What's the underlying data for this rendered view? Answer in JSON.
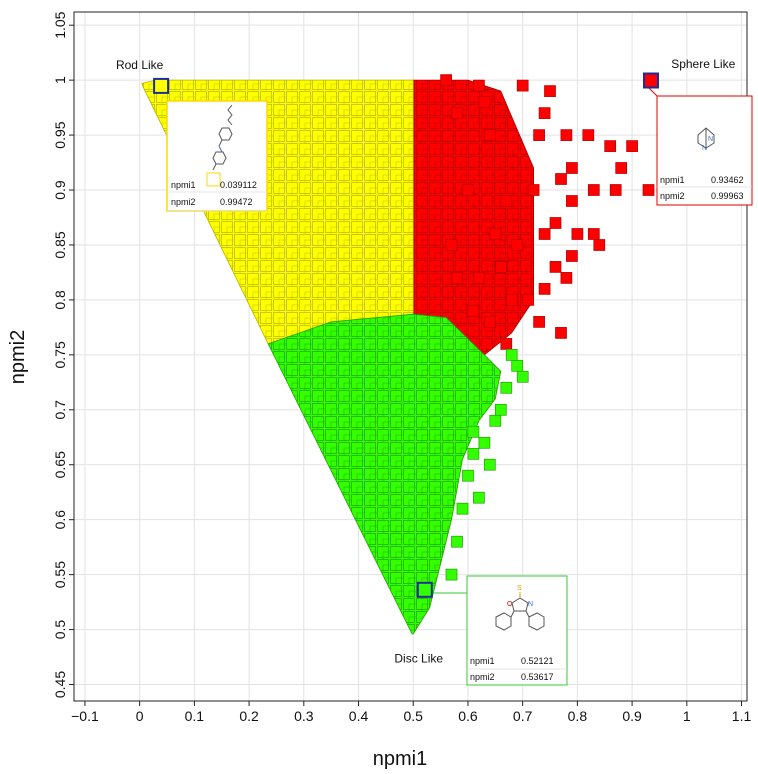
{
  "chart_data": {
    "type": "scatter",
    "xlabel": "npmi1",
    "ylabel": "npmi2",
    "xlim": [
      -0.12,
      1.11
    ],
    "ylim": [
      0.435,
      1.062
    ],
    "x_ticks": [
      -0.1,
      0,
      0.1,
      0.2,
      0.3,
      0.4,
      0.5,
      0.6,
      0.7,
      0.8,
      0.9,
      1,
      1.1
    ],
    "x_tick_labels": [
      "−0.1",
      "0",
      "0.1",
      "0.2",
      "0.3",
      "0.4",
      "0.5",
      "0.6",
      "0.7",
      "0.8",
      "0.9",
      "1",
      "1.1"
    ],
    "y_ticks": [
      0.45,
      0.5,
      0.55,
      0.6,
      0.65,
      0.7,
      0.75,
      0.8,
      0.85,
      0.9,
      0.95,
      1,
      1.05
    ],
    "y_tick_labels": [
      "0.45",
      "0.5",
      "0.55",
      "0.6",
      "0.65",
      "0.7",
      "0.75",
      "0.8",
      "0.85",
      "0.9",
      "0.95",
      "1",
      "1.05"
    ],
    "grid": true,
    "region_labels": [
      {
        "text": "Rod Like",
        "x": 0.0,
        "y": 1.01
      },
      {
        "text": "Sphere Like",
        "x": 1.03,
        "y": 1.011
      },
      {
        "text": "Disc Like",
        "x": 0.51,
        "y": 0.47
      }
    ],
    "series_colors": {
      "rod": "#ffff00",
      "disc": "#33ff00",
      "sphere": "#ff0000"
    },
    "density_regions": {
      "rod": [
        [
          0.004,
          0.997
        ],
        [
          0.03,
          1.0
        ],
        [
          0.5,
          1.0
        ],
        [
          0.5,
          0.787
        ],
        [
          0.35,
          0.78
        ],
        [
          0.235,
          0.76
        ],
        [
          0.007,
          0.993
        ]
      ],
      "disc": [
        [
          0.235,
          0.76
        ],
        [
          0.35,
          0.78
        ],
        [
          0.5,
          0.787
        ],
        [
          0.56,
          0.784
        ],
        [
          0.63,
          0.75
        ],
        [
          0.66,
          0.735
        ],
        [
          0.65,
          0.71
        ],
        [
          0.62,
          0.69
        ],
        [
          0.59,
          0.655
        ],
        [
          0.57,
          0.6
        ],
        [
          0.55,
          0.56
        ],
        [
          0.53,
          0.52
        ],
        [
          0.5,
          0.496
        ],
        [
          0.498,
          0.496
        ]
      ],
      "sphere": [
        [
          0.5,
          1.0
        ],
        [
          0.5,
          0.787
        ],
        [
          0.56,
          0.784
        ],
        [
          0.63,
          0.75
        ],
        [
          0.68,
          0.77
        ],
        [
          0.72,
          0.8
        ],
        [
          0.72,
          0.92
        ],
        [
          0.66,
          0.99
        ],
        [
          0.6,
          1.0
        ]
      ]
    },
    "scattered_points": {
      "sphere": [
        [
          0.56,
          1.0
        ],
        [
          0.62,
          0.995
        ],
        [
          0.7,
          0.995
        ],
        [
          0.75,
          0.99
        ],
        [
          0.74,
          0.97
        ],
        [
          0.78,
          0.95
        ],
        [
          0.79,
          0.92
        ],
        [
          0.82,
          0.95
        ],
        [
          0.86,
          0.94
        ],
        [
          0.88,
          0.92
        ],
        [
          0.9,
          0.94
        ],
        [
          0.87,
          0.9
        ],
        [
          0.83,
          0.9
        ],
        [
          0.79,
          0.89
        ],
        [
          0.8,
          0.86
        ],
        [
          0.76,
          0.87
        ],
        [
          0.74,
          0.86
        ],
        [
          0.76,
          0.83
        ],
        [
          0.79,
          0.84
        ],
        [
          0.83,
          0.86
        ],
        [
          0.84,
          0.85
        ],
        [
          0.78,
          0.82
        ],
        [
          0.74,
          0.81
        ],
        [
          0.71,
          0.8
        ],
        [
          0.73,
          0.78
        ],
        [
          0.77,
          0.77
        ],
        [
          0.72,
          0.9
        ],
        [
          0.73,
          0.95
        ],
        [
          0.77,
          0.91
        ],
        [
          0.68,
          0.8
        ],
        [
          0.66,
          0.83
        ],
        [
          0.69,
          0.85
        ],
        [
          0.67,
          0.89
        ],
        [
          0.64,
          0.95
        ],
        [
          0.58,
          0.97
        ],
        [
          0.63,
          0.98
        ],
        [
          0.6,
          0.9
        ],
        [
          0.65,
          0.86
        ],
        [
          0.62,
          0.82
        ],
        [
          0.58,
          0.82
        ],
        [
          0.57,
          0.85
        ],
        [
          0.61,
          0.79
        ],
        [
          0.64,
          0.78
        ],
        [
          0.67,
          0.76
        ],
        [
          0.93,
          0.9
        ]
      ],
      "disc": [
        [
          0.69,
          0.74
        ],
        [
          0.7,
          0.73
        ],
        [
          0.67,
          0.72
        ],
        [
          0.66,
          0.7
        ],
        [
          0.65,
          0.69
        ],
        [
          0.63,
          0.67
        ],
        [
          0.64,
          0.65
        ],
        [
          0.61,
          0.66
        ],
        [
          0.6,
          0.64
        ],
        [
          0.62,
          0.62
        ],
        [
          0.59,
          0.61
        ],
        [
          0.58,
          0.58
        ],
        [
          0.57,
          0.55
        ],
        [
          0.61,
          0.68
        ],
        [
          0.68,
          0.75
        ]
      ]
    },
    "highlighted_points": [
      {
        "region": "rod",
        "npmi1": 0.039112,
        "npmi2": 0.99472
      },
      {
        "region": "sphere",
        "npmi1": 0.93462,
        "npmi2": 0.99963
      },
      {
        "region": "disc",
        "npmi1": 0.52121,
        "npmi2": 0.53617
      }
    ],
    "info_panels": [
      {
        "region": "rod",
        "border": "#ffd800",
        "rows": [
          {
            "label": "npmi1",
            "value": "0.039112"
          },
          {
            "label": "npmi2",
            "value": "0.99472"
          }
        ]
      },
      {
        "region": "sphere",
        "border": "#e00000",
        "rows": [
          {
            "label": "npmi1",
            "value": "0.93462"
          },
          {
            "label": "npmi2",
            "value": "0.99963"
          }
        ]
      },
      {
        "region": "disc",
        "border": "#33cc33",
        "rows": [
          {
            "label": "npmi1",
            "value": "0.52121"
          },
          {
            "label": "npmi2",
            "value": "0.53617"
          }
        ]
      }
    ]
  }
}
